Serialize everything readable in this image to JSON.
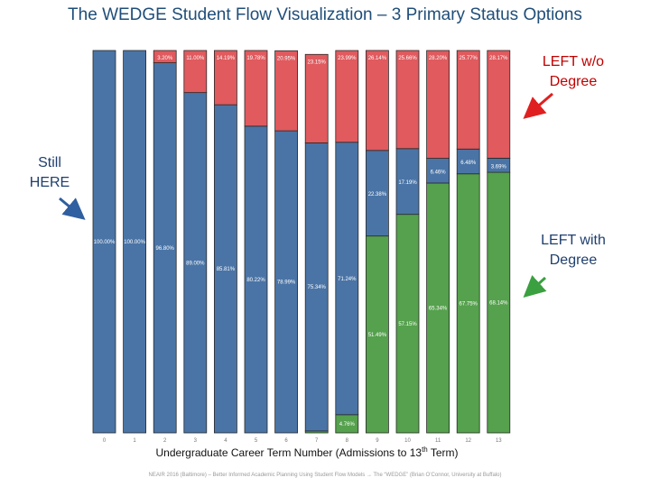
{
  "slide": {
    "title": "The WEDGE Student Flow Visualization – 3 Primary Status Options",
    "footer": "NEAIR 2016 (Baltimore) – Better Informed Academic Planning Using Student Flow Models → The “WEDGE” (Brian O’Connor, University at Buffalo)"
  },
  "annotations": {
    "left_wo_degree": [
      "LEFT w/o",
      "Degree"
    ],
    "still_here": [
      "Still",
      "HERE"
    ],
    "left_with_degree": [
      "LEFT with",
      "Degree"
    ]
  },
  "colors": {
    "still_here": "#4a74a6",
    "left_without_degree": "#e05a5e",
    "left_with_degree": "#55a14d",
    "title": "#1f4e79",
    "annotation_text": "#c00000",
    "arrow_red": "#e02020",
    "arrow_blue": "#2f5fa0",
    "arrow_green": "#3aa040"
  },
  "chart_data": {
    "type": "bar",
    "stacked": true,
    "percent_stacked": true,
    "categories": [
      "0",
      "1",
      "2",
      "3",
      "4",
      "5",
      "6",
      "7",
      "8",
      "9",
      "10",
      "11",
      "12",
      "13"
    ],
    "xlabel_main": "Undergraduate Career Term Number (Admissions to 13",
    "xlabel_sup": "th",
    "xlabel_tail": " Term)",
    "ylim": [
      0,
      100
    ],
    "series": [
      {
        "key": "with_degree",
        "values": [
          0,
          0,
          0,
          0,
          0,
          0,
          0,
          0.5,
          4.76,
          51.49,
          57.15,
          65.34,
          67.75,
          68.14
        ],
        "labels": [
          "",
          "",
          "",
          "",
          "",
          "",
          "",
          "",
          "4.76%",
          "51.49%",
          "57.15%",
          "65.34%",
          "67.75%",
          "68.14%"
        ]
      },
      {
        "key": "still_here",
        "values": [
          100.0,
          100.0,
          96.8,
          89.0,
          85.81,
          80.22,
          78.99,
          75.34,
          71.24,
          22.38,
          17.19,
          6.46,
          6.48,
          3.69
        ],
        "labels": [
          "100.00%",
          "100.00%",
          "96.80%",
          "89.00%",
          "85.81%",
          "80.22%",
          "78.99%",
          "75.34%",
          "71.24%",
          "22.38%",
          "17.19%",
          "6.46%",
          "6.48%",
          "3.69%"
        ]
      },
      {
        "key": "without_degree",
        "values": [
          0,
          0,
          3.2,
          11.0,
          14.19,
          19.78,
          20.95,
          23.15,
          23.99,
          26.14,
          25.66,
          28.2,
          25.77,
          28.17
        ],
        "labels": [
          "",
          "",
          "3.20%",
          "11.00%",
          "14.19%",
          "19.78%",
          "20.95%",
          "23.15%",
          "23.99%",
          "26.14%",
          "25.66%",
          "28.20%",
          "25.77%",
          "28.17%"
        ]
      }
    ]
  }
}
